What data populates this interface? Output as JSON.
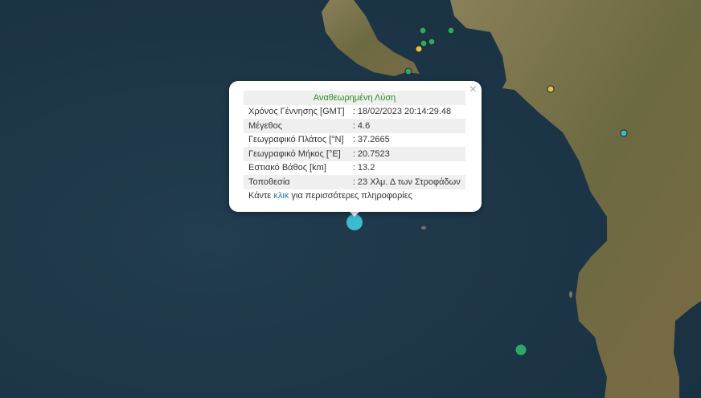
{
  "popup": {
    "title": "Αναθεωρημένη Λύση",
    "close_label": "×",
    "rows": [
      {
        "label": "Χρόνος Γέννησης [GMT]",
        "value": ": 18/02/2023 20:14:29.48"
      },
      {
        "label": "Μέγεθος",
        "value": ": 4.6"
      },
      {
        "label": "Γεωγραφικό Πλάτος [°N]",
        "value": ": 37.2665"
      },
      {
        "label": "Γεωγραφικό Μήκος [°E]",
        "value": ": 20.7523"
      },
      {
        "label": "Εστιακό Βάθος [km]",
        "value": ": 13.2"
      },
      {
        "label": "Τοποθεσία",
        "value": ": 23 Χλμ. Δ των Στροφάδων"
      }
    ],
    "more_prefix": "Κάντε ",
    "more_link": "κλικ",
    "more_suffix": " για περισσότερες πληροφορίες"
  },
  "colors": {
    "ocean": "#1e3548",
    "land": "#6f6a45",
    "green": "#2ea866",
    "yellow": "#e3c24a",
    "cyan": "#3bbcd0"
  },
  "markers": [
    {
      "type": "green"
    },
    {
      "type": "green"
    },
    {
      "type": "green"
    },
    {
      "type": "green"
    },
    {
      "type": "green"
    },
    {
      "type": "yellow"
    },
    {
      "type": "yellow"
    },
    {
      "type": "cyan"
    },
    {
      "type": "cyan-selected"
    },
    {
      "type": "green"
    }
  ]
}
